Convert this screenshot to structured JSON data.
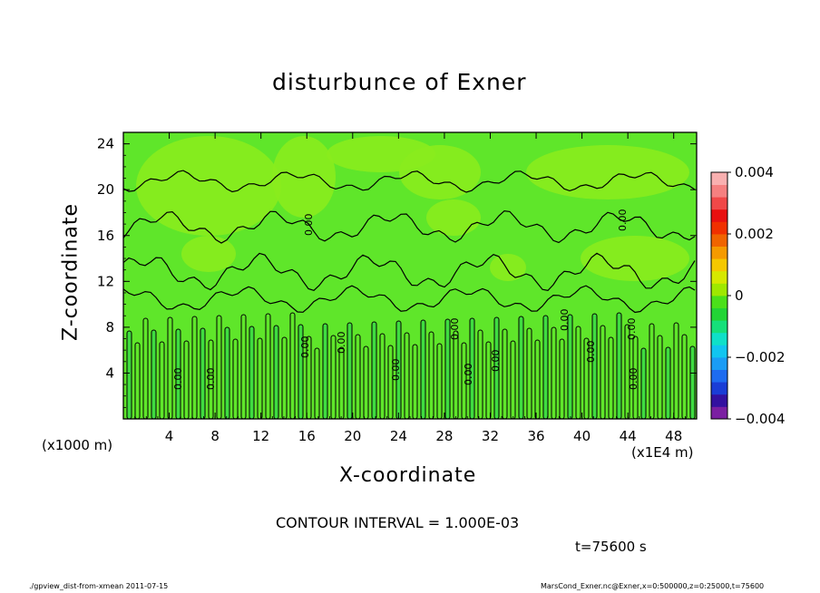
{
  "chart_data": {
    "type": "heatmap",
    "title": "disturbunce of Exner",
    "xlabel": "X-coordinate",
    "ylabel": "Z-coordinate",
    "x_unit_left": "(x1000 m)",
    "x_unit_right": "(x1E4 m)",
    "xlim": [
      0,
      50
    ],
    "ylim": [
      0,
      25
    ],
    "x_ticks": [
      4,
      8,
      12,
      16,
      20,
      24,
      28,
      32,
      36,
      40,
      44,
      48
    ],
    "y_ticks": [
      4,
      8,
      12,
      16,
      20,
      24
    ],
    "colorbar": {
      "min": -0.004,
      "max": 0.004,
      "tick_labels": [
        "0.004",
        "0.002",
        "0",
        "−0.002",
        "−0.004"
      ],
      "colors": [
        "#7b1fa2",
        "#3311a0",
        "#1a3dd6",
        "#1e6cf0",
        "#1a9cf5",
        "#11c5f0",
        "#0fe0c8",
        "#15e07a",
        "#22d435",
        "#4be01a",
        "#9fe800",
        "#d6e800",
        "#f5c800",
        "#f59a00",
        "#f06400",
        "#f03000",
        "#e81010",
        "#f04848",
        "#f58080",
        "#f9b0b0"
      ]
    },
    "field_colors": {
      "background": "#5fe62a",
      "lighter": "#8aec1d",
      "neutral": "#3fdc40"
    },
    "contour_label": "0.00",
    "contour_interval": "CONTOUR INTERVAL = 1.000E-03",
    "time_label": "t=75600 s"
  },
  "footer": {
    "left": "./gpview_dist-from-xmean  2011-07-15",
    "right": "MarsCond_Exner.nc@Exner,x=0:500000,z=0:25000,t=75600"
  }
}
